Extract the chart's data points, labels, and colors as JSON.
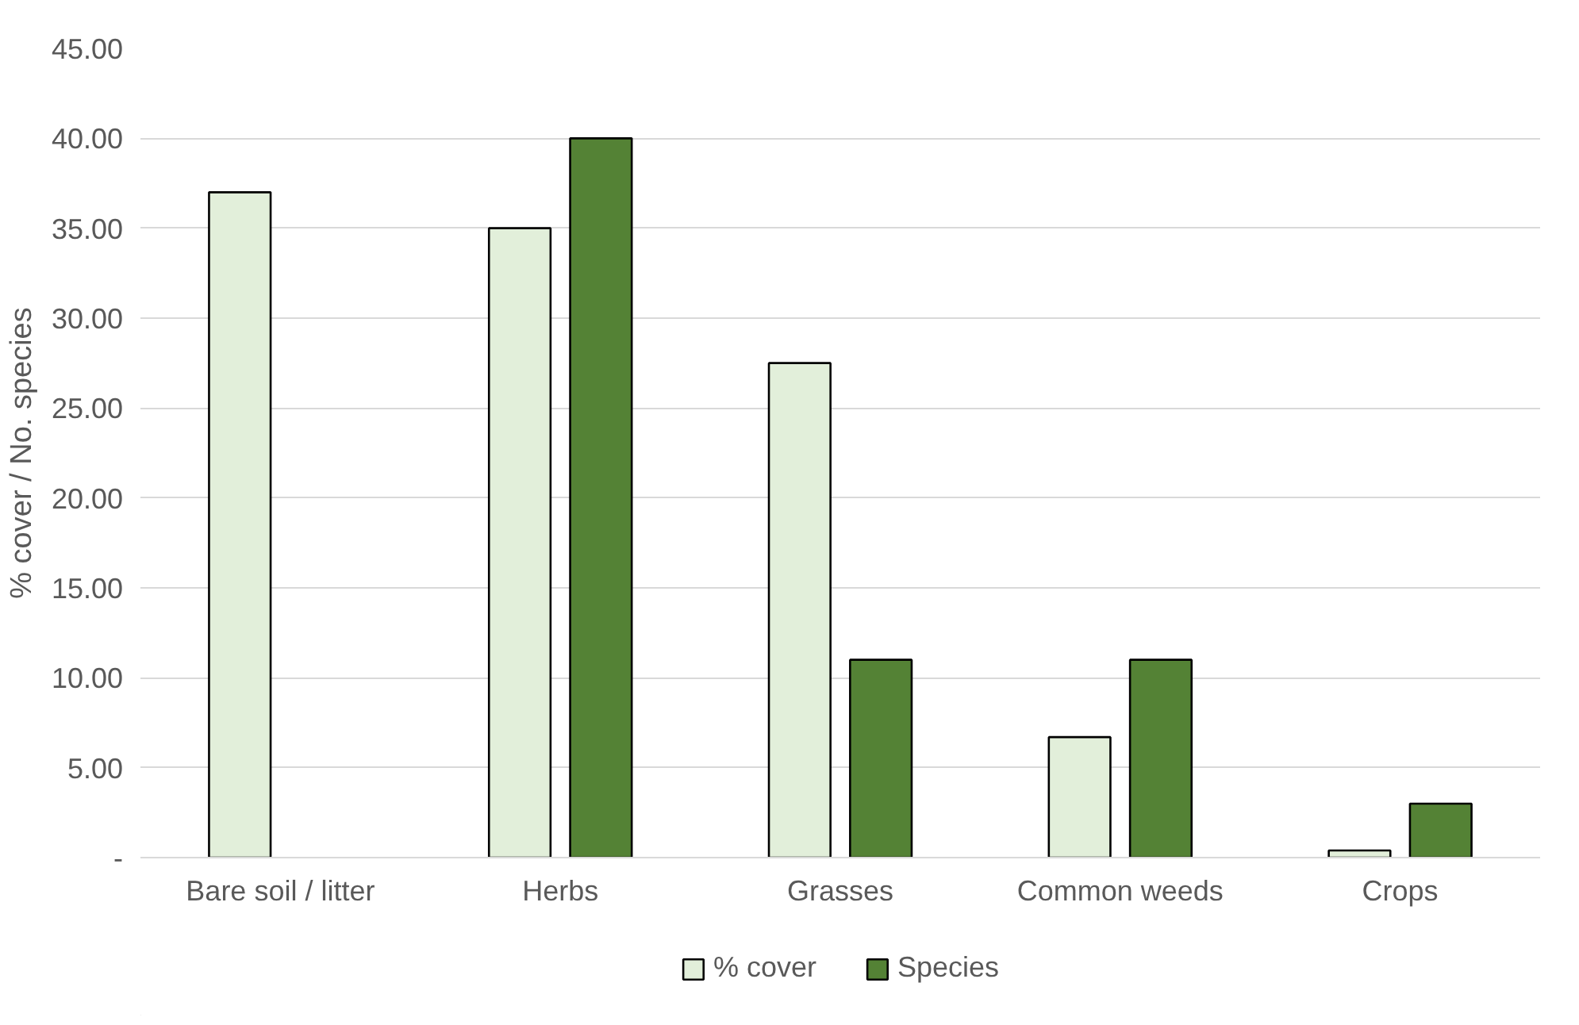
{
  "chart_data": {
    "type": "bar",
    "ylabel": "% cover / No. species",
    "categories": [
      "Bare soil / litter",
      "Herbs",
      "Grasses",
      "Common weeds",
      "Crops"
    ],
    "series": [
      {
        "name": "% cover",
        "color": "#e2efda",
        "values": [
          37,
          35,
          27.5,
          6.7,
          0.4
        ]
      },
      {
        "name": "Species",
        "color": "#548235",
        "values": [
          null,
          40,
          11,
          11,
          3
        ]
      }
    ],
    "ylim": [
      0,
      45
    ],
    "yticks": [
      {
        "value": 0,
        "label": "-"
      },
      {
        "value": 5,
        "label": "5.00"
      },
      {
        "value": 10,
        "label": "10.00"
      },
      {
        "value": 15,
        "label": "15.00"
      },
      {
        "value": 20,
        "label": "20.00"
      },
      {
        "value": 25,
        "label": "25.00"
      },
      {
        "value": 30,
        "label": "30.00"
      },
      {
        "value": 35,
        "label": "35.00"
      },
      {
        "value": 40,
        "label": "40.00"
      },
      {
        "value": 45,
        "label": "45.00"
      }
    ],
    "grid": "y",
    "legend": "bottom"
  }
}
